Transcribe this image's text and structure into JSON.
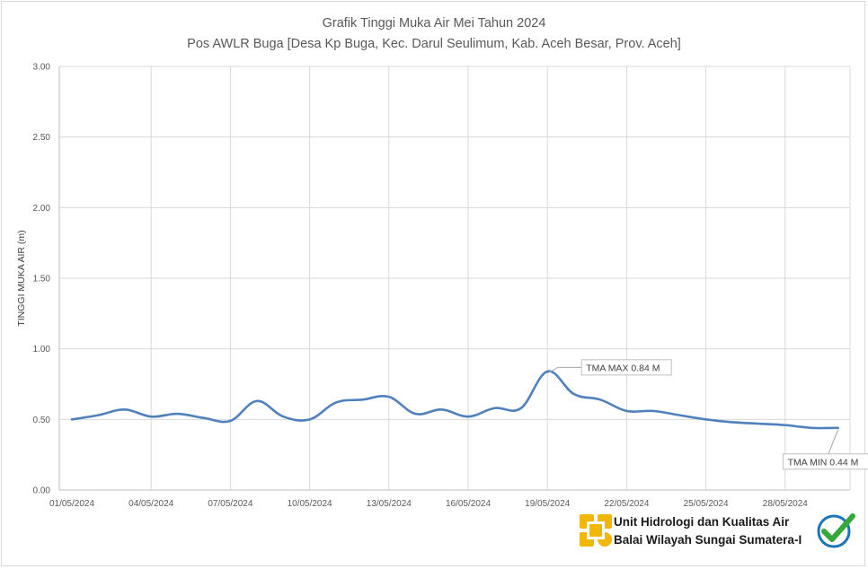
{
  "chart_data": {
    "type": "line",
    "title": "Grafik Tinggi Muka Air Mei Tahun 2024",
    "subtitle": "Pos AWLR Buga [Desa Kp Buga, Kec. Darul Seulimum, Kab. Aceh Besar, Prov. Aceh]",
    "xlabel": "",
    "ylabel": "TINGGI MUKA AIR (m)",
    "ylim": [
      0,
      3
    ],
    "yticks": [
      "0.00",
      "0.50",
      "1.00",
      "1.50",
      "2.00",
      "2.50",
      "3.00"
    ],
    "xticks": [
      "01/05/2024",
      "04/05/2024",
      "07/05/2024",
      "10/05/2024",
      "13/05/2024",
      "16/05/2024",
      "19/05/2024",
      "22/05/2024",
      "25/05/2024",
      "28/05/2024"
    ],
    "x": [
      "01/05/2024",
      "02/05/2024",
      "03/05/2024",
      "04/05/2024",
      "05/05/2024",
      "06/05/2024",
      "07/05/2024",
      "08/05/2024",
      "09/05/2024",
      "10/05/2024",
      "11/05/2024",
      "12/05/2024",
      "13/05/2024",
      "14/05/2024",
      "15/05/2024",
      "16/05/2024",
      "17/05/2024",
      "18/05/2024",
      "19/05/2024",
      "20/05/2024",
      "21/05/2024",
      "22/05/2024",
      "23/05/2024",
      "24/05/2024",
      "25/05/2024",
      "26/05/2024",
      "27/05/2024",
      "28/05/2024",
      "29/05/2024",
      "30/05/2024"
    ],
    "series": [
      {
        "color": "#4f81bd",
        "values": [
          0.5,
          0.53,
          0.57,
          0.52,
          0.54,
          0.51,
          0.49,
          0.63,
          0.52,
          0.5,
          0.62,
          0.64,
          0.66,
          0.54,
          0.57,
          0.52,
          0.58,
          0.58,
          0.84,
          0.68,
          0.64,
          0.56,
          0.56,
          0.53,
          0.5,
          0.48,
          0.47,
          0.46,
          0.44,
          0.44
        ]
      }
    ],
    "grid": true,
    "annotations": [
      {
        "text": "TMA MAX  0.84  M",
        "x": "19/05/2024",
        "y": 0.84
      },
      {
        "text": "TMA MIN  0.44  M",
        "x": "30/05/2024",
        "y": 0.44
      }
    ]
  },
  "logo": {
    "line1": "Unit Hidrologi dan Kualitas Air",
    "line2": "Balai Wilayah Sungai Sumatera-I",
    "pu_color": "#f2b705",
    "cert_color": "#1b75bc",
    "check_color": "#36a83a"
  }
}
